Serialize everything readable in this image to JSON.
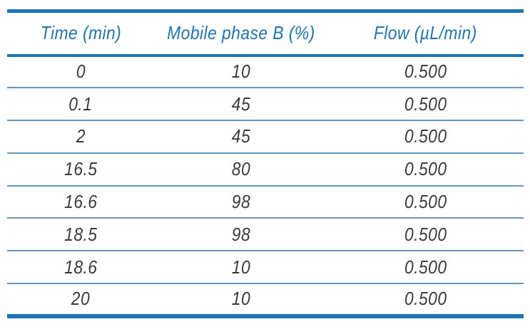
{
  "table": {
    "columns": [
      "Time (min)",
      "Mobile phase B (%)",
      "Flow (µL/min)"
    ],
    "rows": [
      [
        "0",
        "10",
        "0.500"
      ],
      [
        "0.1",
        "45",
        "0.500"
      ],
      [
        "2",
        "45",
        "0.500"
      ],
      [
        "16.5",
        "80",
        "0.500"
      ],
      [
        "16.6",
        "98",
        "0.500"
      ],
      [
        "18.5",
        "98",
        "0.500"
      ],
      [
        "18.6",
        "10",
        "0.500"
      ],
      [
        "20",
        "10",
        "0.500"
      ]
    ]
  },
  "colors": {
    "accent_blue": "#1777be",
    "separator_blue": "#5b9bd5",
    "body_text": "#3b3b3b"
  }
}
